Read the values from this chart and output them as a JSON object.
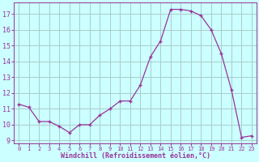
{
  "x": [
    0,
    1,
    2,
    3,
    4,
    5,
    6,
    7,
    8,
    9,
    10,
    11,
    12,
    13,
    14,
    15,
    16,
    17,
    18,
    19,
    20,
    21,
    22,
    23
  ],
  "y": [
    11.3,
    11.1,
    10.2,
    10.2,
    9.9,
    9.5,
    10.0,
    10.0,
    10.6,
    11.0,
    11.5,
    11.5,
    12.5,
    14.3,
    15.3,
    17.3,
    17.3,
    17.2,
    16.9,
    16.0,
    14.5,
    12.2,
    9.2,
    9.3
  ],
  "line_color": "#993399",
  "marker": "+",
  "bg_color": "#ccffff",
  "grid_color": "#aacccc",
  "xlabel": "Windchill (Refroidissement éolien,°C)",
  "xlabel_color": "#993399",
  "ylabel_ticks": [
    9,
    10,
    11,
    12,
    13,
    14,
    15,
    16,
    17
  ],
  "xlim": [
    -0.5,
    23.5
  ],
  "ylim": [
    8.8,
    17.75
  ],
  "xtick_labels": [
    "0",
    "1",
    "2",
    "3",
    "4",
    "5",
    "6",
    "7",
    "8",
    "9",
    "10",
    "11",
    "12",
    "13",
    "14",
    "15",
    "16",
    "17",
    "18",
    "19",
    "20",
    "21",
    "22",
    "23"
  ]
}
